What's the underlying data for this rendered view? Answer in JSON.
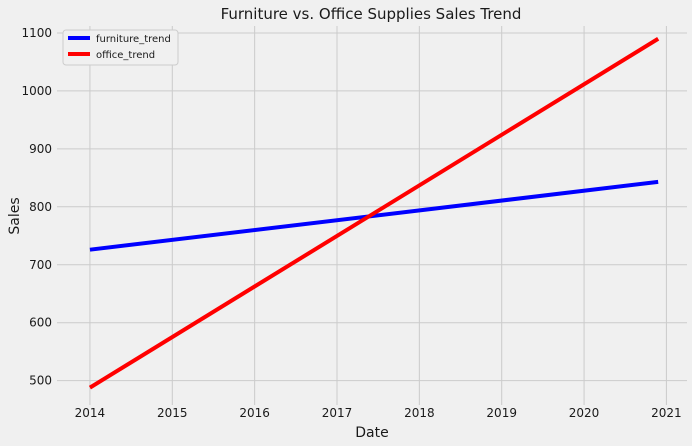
{
  "chart_data": {
    "type": "line",
    "title": "Furniture vs. Office Supplies Sales Trend",
    "xlabel": "Date",
    "ylabel": "Sales",
    "xlim": [
      2013.6,
      2021.25
    ],
    "ylim": [
      458,
      1112
    ],
    "x_ticks": [
      "2014",
      "2015",
      "2016",
      "2017",
      "2018",
      "2019",
      "2020",
      "2021"
    ],
    "x_tick_values": [
      2014,
      2015,
      2016,
      2017,
      2018,
      2019,
      2020,
      2021
    ],
    "y_ticks": [
      "500",
      "600",
      "700",
      "800",
      "900",
      "1000",
      "1100"
    ],
    "y_tick_values": [
      500,
      600,
      700,
      800,
      900,
      1000,
      1100
    ],
    "grid": true,
    "legend_position": "top-left",
    "series": [
      {
        "name": "furniture_trend",
        "color": "#0000ff",
        "x": [
          2014.0,
          2020.9
        ],
        "y": [
          726,
          843
        ]
      },
      {
        "name": "office_trend",
        "color": "#ff0000",
        "x": [
          2014.0,
          2020.9
        ],
        "y": [
          488,
          1090
        ]
      }
    ]
  }
}
